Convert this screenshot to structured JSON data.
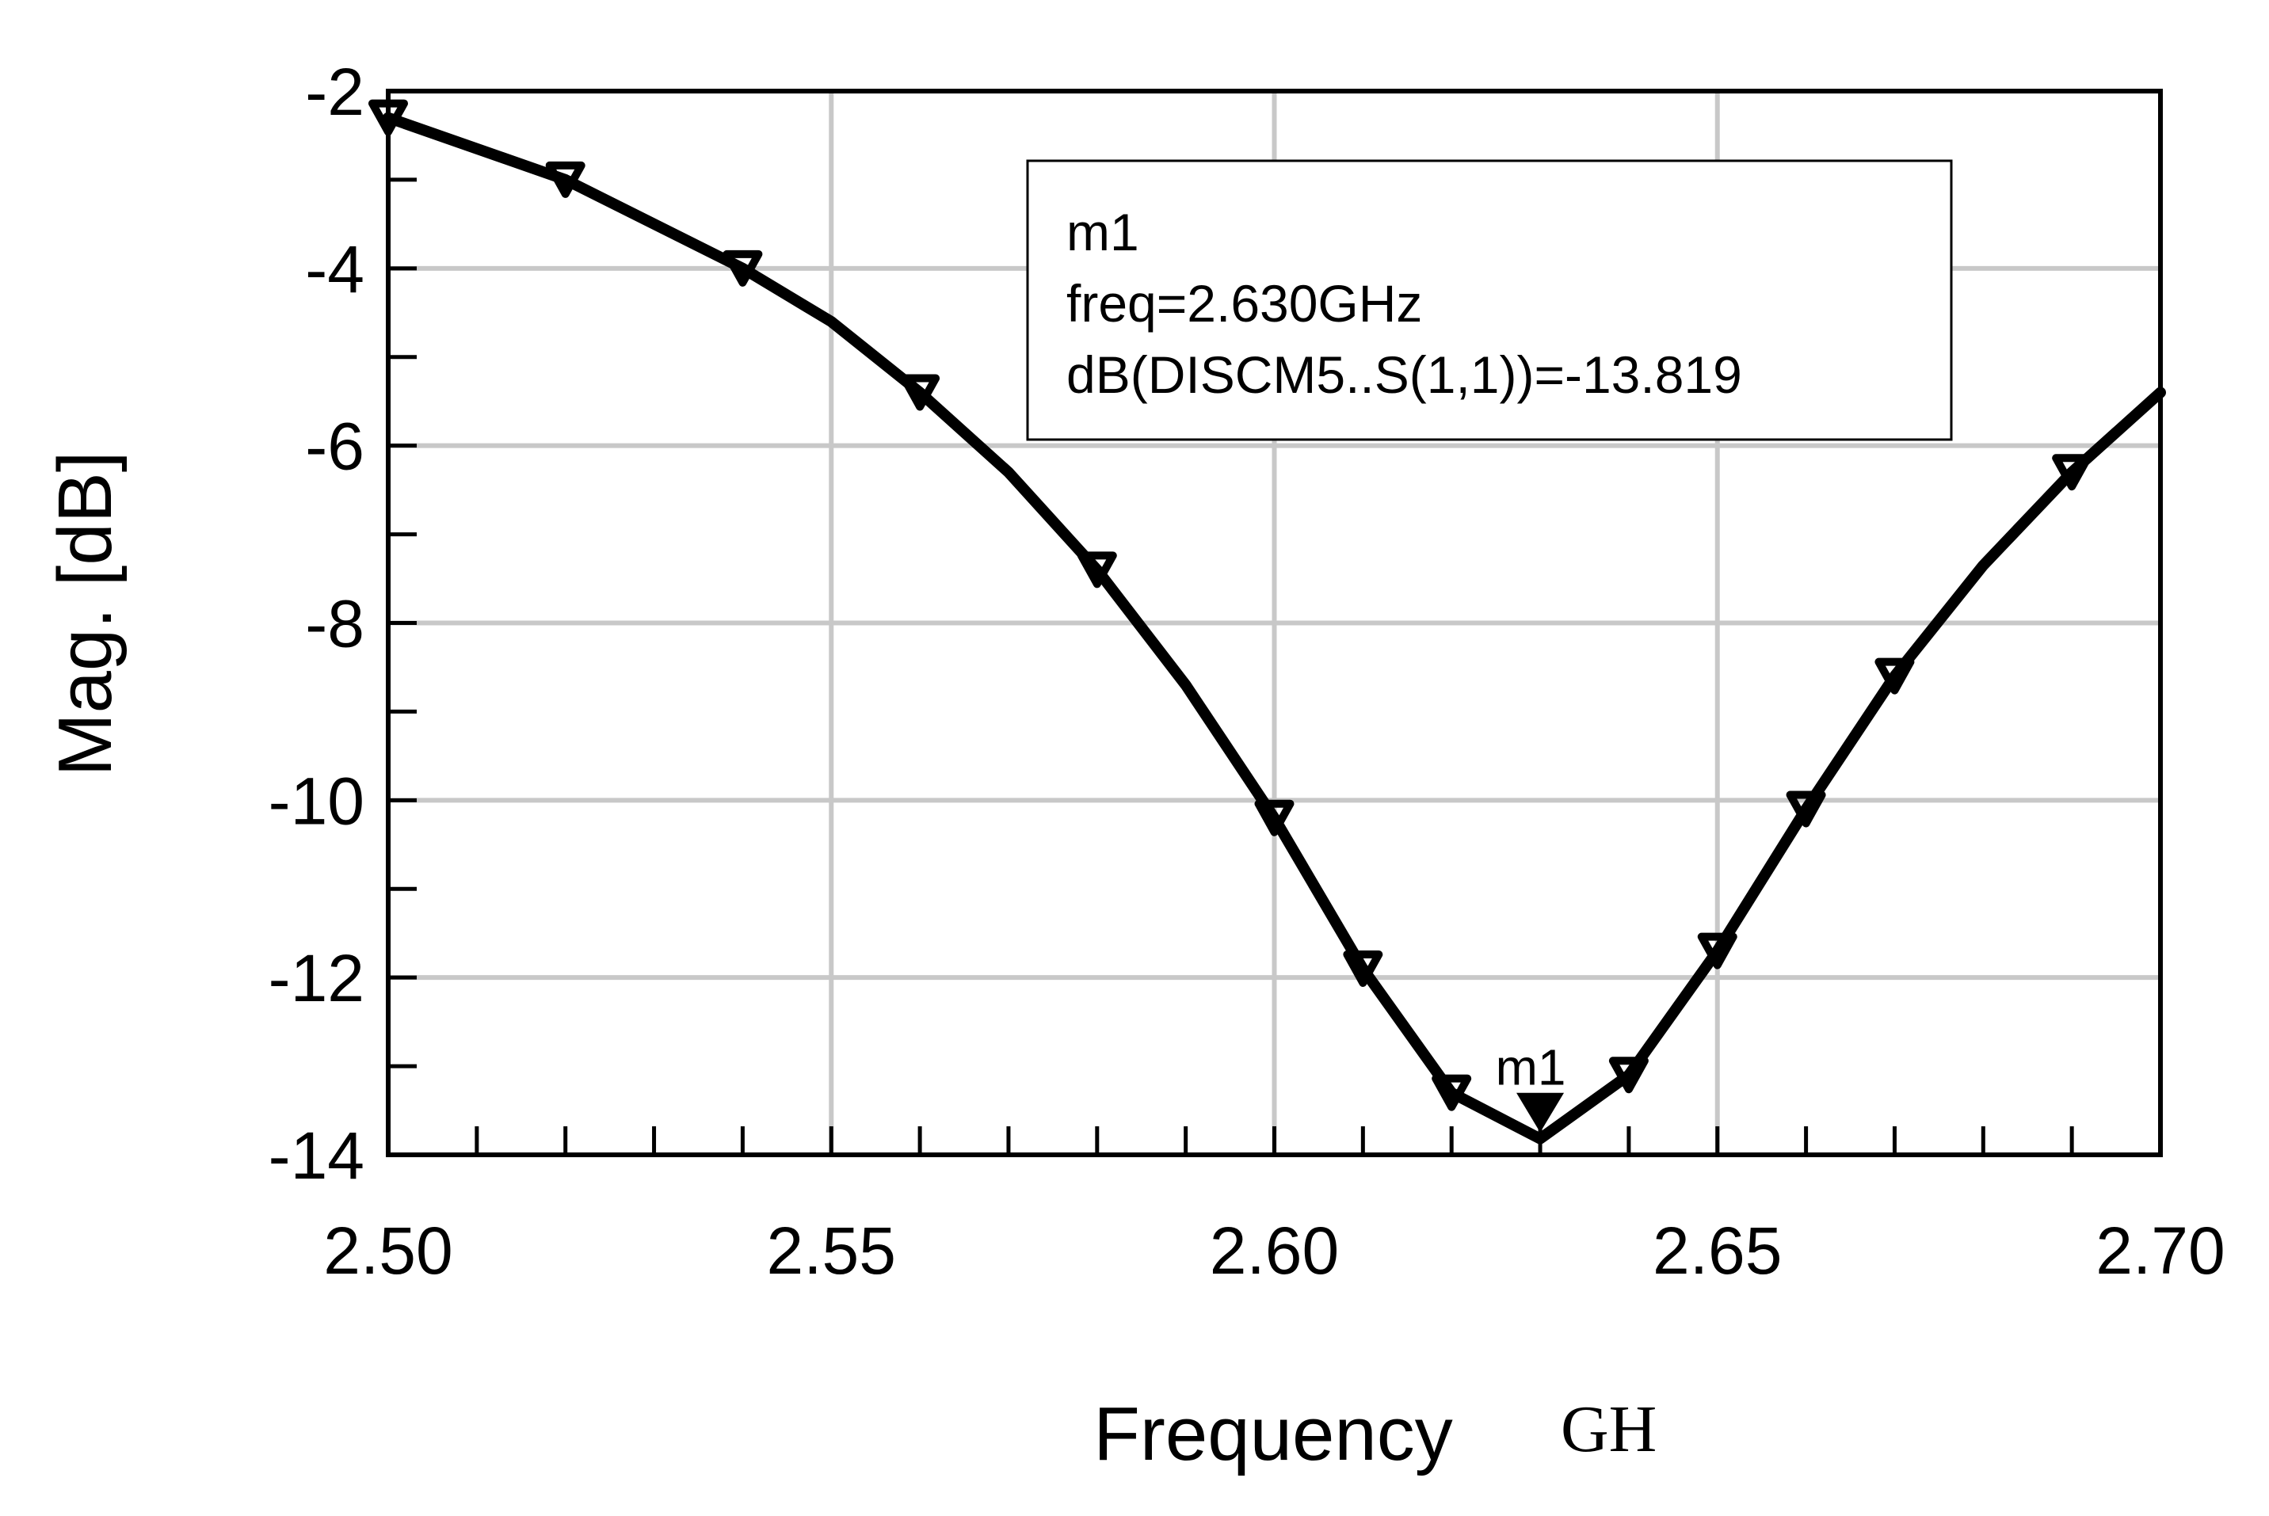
{
  "chart_data": {
    "type": "line",
    "xlabel": "Frequency",
    "x_unit": "GH",
    "ylabel": "Mag. [dB]",
    "xlim": [
      2.5,
      2.7
    ],
    "ylim": [
      -14,
      -2
    ],
    "x_ticks": [
      "2.50",
      "2.55",
      "2.60",
      "2.65",
      "2.70"
    ],
    "y_ticks": [
      "-2",
      "-4",
      "-6",
      "-8",
      "-10",
      "-12",
      "-14"
    ],
    "grid": true,
    "series": [
      {
        "x": [
          2.5,
          2.52,
          2.54,
          2.55,
          2.56,
          2.57,
          2.58,
          2.59,
          2.6,
          2.61,
          2.62,
          2.63,
          2.64,
          2.65,
          2.66,
          2.67,
          2.68,
          2.69,
          2.7
        ],
        "y": [
          -2.3,
          -3.0,
          -4.0,
          -4.6,
          -5.4,
          -6.3,
          -7.4,
          -8.7,
          -10.2,
          -11.9,
          -13.3,
          -13.819,
          -13.1,
          -11.7,
          -10.1,
          -8.6,
          -7.35,
          -6.3,
          -5.4
        ]
      }
    ],
    "marker_points": {
      "x": [
        2.5,
        2.52,
        2.54,
        2.56,
        2.58,
        2.6,
        2.61,
        2.62,
        2.64,
        2.65,
        2.66,
        2.67,
        2.69
      ],
      "y": [
        -2.3,
        -3.0,
        -4.0,
        -5.4,
        -7.4,
        -10.2,
        -11.9,
        -13.3,
        -13.1,
        -11.7,
        -10.1,
        -8.6,
        -6.3
      ]
    },
    "annotation": {
      "name": "m1",
      "x": 2.63,
      "y": -13.819,
      "lines": [
        "m1",
        "freq=2.630GHz",
        "dB(DISCM5..S(1,1))=-13.819"
      ]
    }
  }
}
